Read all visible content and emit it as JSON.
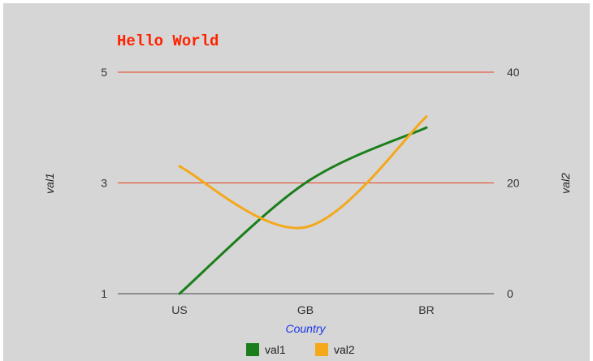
{
  "chart_data": {
    "type": "line",
    "title": "Hello World",
    "categories": [
      "US",
      "GB",
      "BR"
    ],
    "xlabel": "Country",
    "ylabel_left": "val1",
    "ylabel_right": "val2",
    "y_left": {
      "lim": [
        1,
        5
      ],
      "ticks": [
        "1",
        "3",
        "5"
      ]
    },
    "y_right": {
      "lim": [
        0,
        40
      ],
      "ticks": [
        "0",
        "20",
        "40"
      ]
    },
    "series": [
      {
        "name": "val1",
        "axis": "left",
        "values": [
          1,
          3,
          4
        ],
        "color": "#1a7f1a"
      },
      {
        "name": "val2",
        "axis": "right",
        "values": [
          23,
          12,
          32
        ],
        "color": "#f4a81a"
      }
    ],
    "legend_position": "bottom",
    "colors": {
      "title": "#ff2200",
      "gridline": "#e8421a",
      "baseline": "#444444",
      "xlabel": "#1a35e8"
    }
  }
}
